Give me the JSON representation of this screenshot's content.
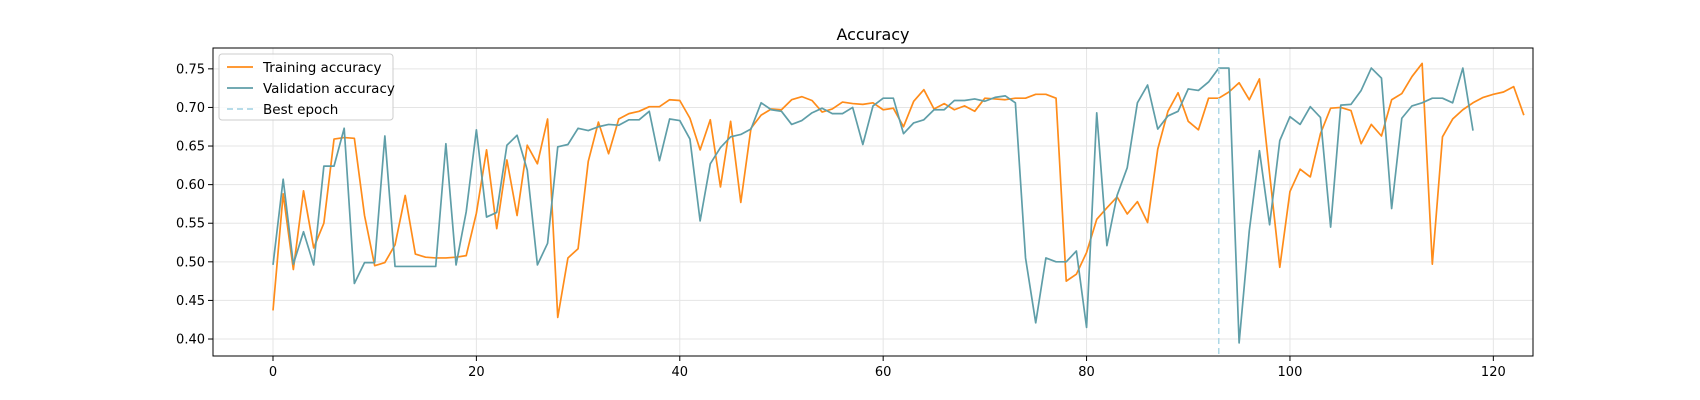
{
  "chart_data": {
    "type": "line",
    "title": "Accuracy",
    "xlabel": "",
    "ylabel": "",
    "xlim": [
      -5.9,
      123.9
    ],
    "ylim": [
      0.378,
      0.777
    ],
    "xticks": [
      0,
      20,
      40,
      60,
      80,
      100,
      120
    ],
    "yticks": [
      0.4,
      0.45,
      0.5,
      0.55,
      0.6,
      0.65,
      0.7,
      0.75
    ],
    "grid": true,
    "legend_position": "top-left",
    "series": [
      {
        "name": "Training accuracy",
        "color": "#ff8c1a",
        "x_start": 0,
        "values": [
          0.437,
          0.588,
          0.49,
          0.592,
          0.518,
          0.55,
          0.659,
          0.661,
          0.66,
          0.56,
          0.495,
          0.499,
          0.522,
          0.586,
          0.51,
          0.506,
          0.505,
          0.505,
          0.506,
          0.508,
          0.563,
          0.645,
          0.543,
          0.632,
          0.56,
          0.651,
          0.627,
          0.685,
          0.428,
          0.505,
          0.517,
          0.63,
          0.681,
          0.64,
          0.685,
          0.692,
          0.695,
          0.701,
          0.701,
          0.71,
          0.709,
          0.686,
          0.645,
          0.684,
          0.597,
          0.682,
          0.577,
          0.673,
          0.69,
          0.698,
          0.697,
          0.71,
          0.714,
          0.709,
          0.694,
          0.698,
          0.707,
          0.705,
          0.704,
          0.706,
          0.697,
          0.699,
          0.675,
          0.708,
          0.723,
          0.698,
          0.705,
          0.697,
          0.702,
          0.695,
          0.712,
          0.711,
          0.71,
          0.712,
          0.712,
          0.717,
          0.717,
          0.712,
          0.475,
          0.484,
          0.512,
          0.555,
          0.57,
          0.584,
          0.562,
          0.578,
          0.551,
          0.646,
          0.695,
          0.719,
          0.682,
          0.671,
          0.712,
          0.712,
          0.72,
          0.732,
          0.71,
          0.737,
          0.614,
          0.493,
          0.591,
          0.62,
          0.61,
          0.666,
          0.699,
          0.7,
          0.696,
          0.653,
          0.678,
          0.663,
          0.71,
          0.718,
          0.74,
          0.757,
          0.497,
          0.662,
          0.685,
          0.697,
          0.706,
          0.713,
          0.717,
          0.72,
          0.727,
          0.69
        ],
        "note_x_range": [
          0,
          118
        ]
      },
      {
        "name": "Validation accuracy",
        "color": "#5f9ea8",
        "x_start": 0,
        "values": [
          0.496,
          0.607,
          0.497,
          0.539,
          0.496,
          0.624,
          0.624,
          0.673,
          0.472,
          0.499,
          0.499,
          0.663,
          0.494,
          0.494,
          0.494,
          0.494,
          0.494,
          0.653,
          0.496,
          0.565,
          0.671,
          0.558,
          0.564,
          0.651,
          0.664,
          0.619,
          0.496,
          0.524,
          0.649,
          0.652,
          0.673,
          0.67,
          0.675,
          0.678,
          0.677,
          0.684,
          0.684,
          0.695,
          0.631,
          0.685,
          0.683,
          0.659,
          0.553,
          0.627,
          0.648,
          0.662,
          0.665,
          0.672,
          0.706,
          0.697,
          0.695,
          0.678,
          0.683,
          0.693,
          0.699,
          0.692,
          0.692,
          0.7,
          0.652,
          0.702,
          0.712,
          0.712,
          0.666,
          0.68,
          0.684,
          0.697,
          0.697,
          0.709,
          0.709,
          0.711,
          0.708,
          0.713,
          0.715,
          0.706,
          0.505,
          0.421,
          0.505,
          0.5,
          0.5,
          0.514,
          0.415,
          0.693,
          0.521,
          0.586,
          0.622,
          0.706,
          0.729,
          0.672,
          0.689,
          0.695,
          0.724,
          0.722,
          0.733,
          0.751,
          0.751,
          0.395,
          0.54,
          0.644,
          0.548,
          0.657,
          0.688,
          0.678,
          0.701,
          0.687,
          0.545,
          0.703,
          0.704,
          0.722,
          0.751,
          0.738,
          0.569,
          0.686,
          0.702,
          0.706,
          0.712,
          0.712,
          0.706,
          0.751,
          0.67
        ]
      },
      {
        "name": "Best epoch",
        "color": "#add8e6",
        "style": "dashed-vertical",
        "x": 93
      }
    ]
  }
}
